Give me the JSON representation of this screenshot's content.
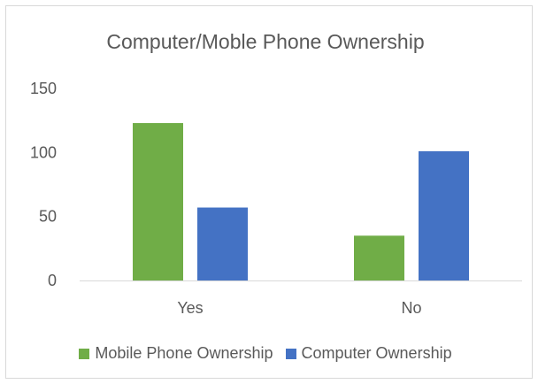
{
  "chart_data": {
    "type": "bar",
    "title": "Computer/Moble Phone Ownership",
    "categories": [
      "Yes",
      "No"
    ],
    "series": [
      {
        "name": "Mobile Phone Ownership",
        "color": "#70ad47",
        "values": [
          123,
          35
        ]
      },
      {
        "name": "Computer Ownership",
        "color": "#4472c4",
        "values": [
          57,
          101
        ]
      }
    ],
    "ylim": [
      0,
      150
    ],
    "yticks": [
      0,
      50,
      100,
      150
    ],
    "grid": false,
    "legend_position": "bottom"
  }
}
